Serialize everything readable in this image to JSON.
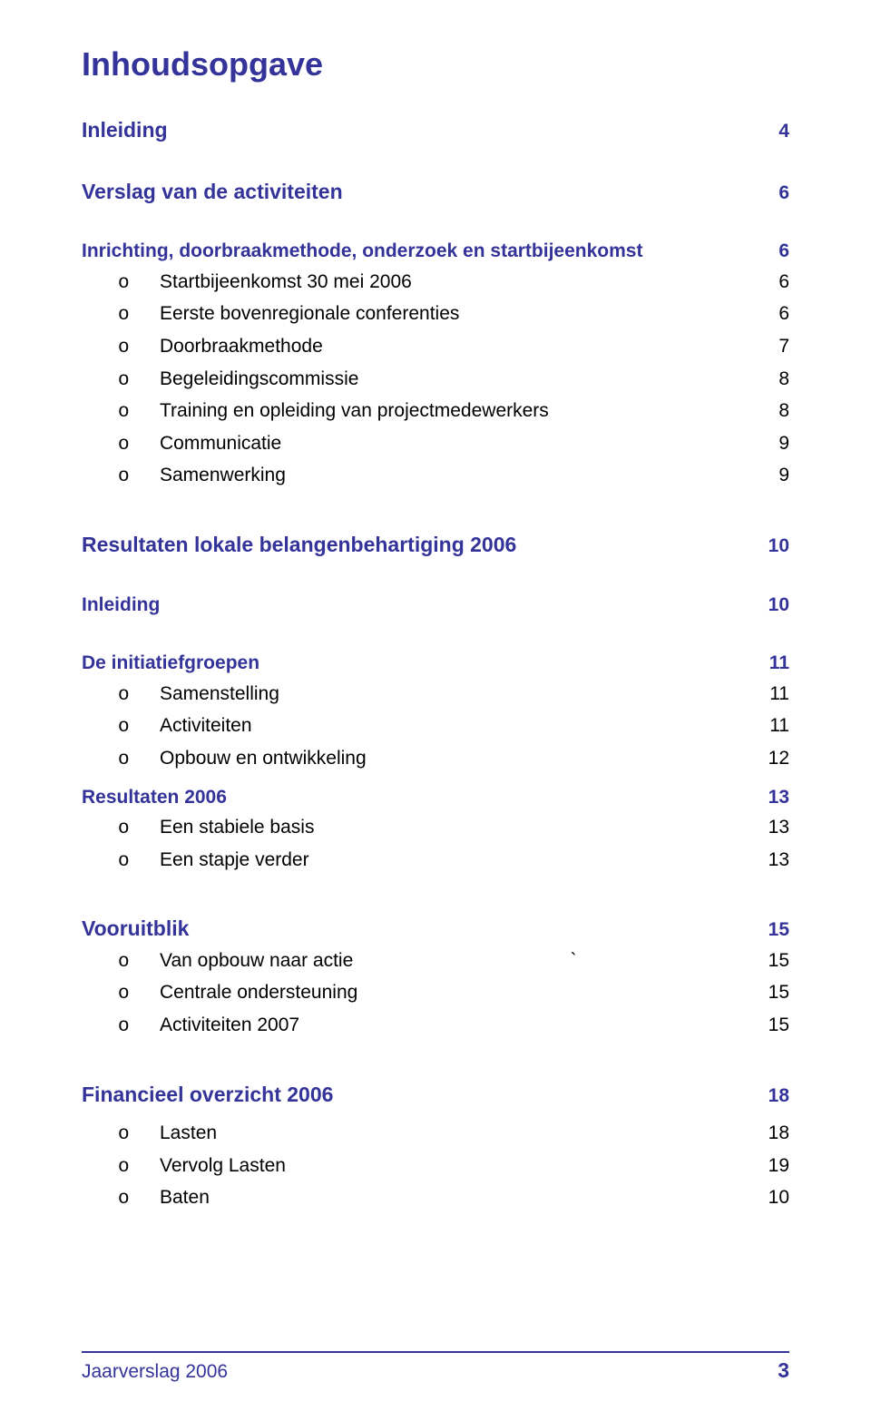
{
  "bullet": "o",
  "title": "Inhoudsopgave",
  "sections": {
    "inleiding": {
      "label": "Inleiding",
      "page": "4"
    },
    "verslag": {
      "label": "Verslag van de activiteiten",
      "page": "6"
    },
    "inrichting": {
      "label": "Inrichting, doorbraakmethode, onderzoek en startbijeenkomst",
      "page": "6"
    },
    "inrichting_items": [
      {
        "label": "Startbijeenkomst 30 mei 2006",
        "page": "6"
      },
      {
        "label": "Eerste bovenregionale conferenties",
        "page": "6"
      },
      {
        "label": "Doorbraakmethode",
        "page": "7"
      },
      {
        "label": "Begeleidingscommissie",
        "page": "8"
      },
      {
        "label": "Training en opleiding van projectmedewerkers",
        "page": "8"
      },
      {
        "label": "Communicatie",
        "page": "9"
      },
      {
        "label": "Samenwerking",
        "page": "9"
      }
    ],
    "resultaten_lokale": {
      "label": "Resultaten lokale belangenbehartiging 2006",
      "page": "10"
    },
    "inleiding2": {
      "label": "Inleiding",
      "page": "10"
    },
    "initiatief": {
      "label": "De initiatiefgroepen",
      "page": "11"
    },
    "initiatief_items": [
      {
        "label": "Samenstelling",
        "page": "11"
      },
      {
        "label": "Activiteiten",
        "page": "11"
      },
      {
        "label": "Opbouw en ontwikkeling",
        "page": "12"
      }
    ],
    "resultaten2006": {
      "label": "Resultaten 2006",
      "page": "13"
    },
    "resultaten2006_items": [
      {
        "label": "Een stabiele basis",
        "page": "13"
      },
      {
        "label": "Een stapje verder",
        "page": "13"
      }
    ],
    "vooruitblik": {
      "label": "Vooruitblik",
      "page": "15"
    },
    "vooruitblik_items": [
      {
        "label": "Van opbouw naar actie                                         `",
        "page": "15"
      },
      {
        "label": "Centrale ondersteuning",
        "page": "15"
      },
      {
        "label": "Activiteiten 2007",
        "page": "15"
      }
    ],
    "financieel": {
      "label": "Financieel overzicht 2006",
      "page": "18"
    },
    "financieel_items": [
      {
        "label": "Lasten",
        "page": "18"
      },
      {
        "label": "Vervolg Lasten",
        "page": "19"
      },
      {
        "label": "Baten",
        "page": "10"
      }
    ]
  },
  "footer": {
    "left": "Jaarverslag 2006",
    "pagenum": "3"
  },
  "colors": {
    "heading": "#333399",
    "body": "#000000",
    "rule": "#333399",
    "background": "#ffffff"
  },
  "typography": {
    "h1_size_pt": 27,
    "h2_size_pt": 17,
    "body_size_pt": 16,
    "font_family": "Lucida Sans"
  }
}
